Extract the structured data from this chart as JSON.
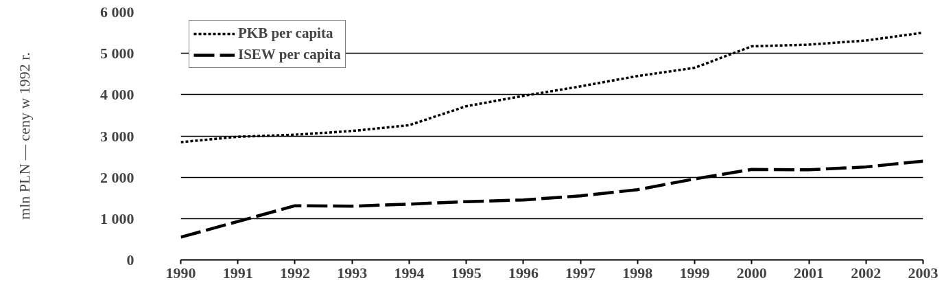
{
  "chart_data": {
    "type": "line",
    "ylabel": "mln PLN — ceny w 1992 r.",
    "x": [
      1990,
      1991,
      1992,
      1993,
      1994,
      1995,
      1996,
      1997,
      1998,
      1999,
      2000,
      2001,
      2002,
      2003
    ],
    "xlim": [
      1990,
      2003
    ],
    "xticks": [
      1990,
      1991,
      1992,
      1993,
      1994,
      1995,
      1996,
      1997,
      1998,
      1999,
      2000,
      2001,
      2002,
      2003
    ],
    "ylim": [
      0,
      6000
    ],
    "yticks": [
      0,
      {
        "value": 1000,
        "label": "1 000"
      },
      {
        "value": 2000,
        "label": "2 000"
      },
      {
        "value": 3000,
        "label": "3 000"
      },
      {
        "value": 4000,
        "label": "4 000"
      },
      {
        "value": 5000,
        "label": "5 000"
      },
      {
        "value": 6000,
        "label": "6 000"
      }
    ],
    "grid": "y",
    "legend": "top left",
    "series": [
      {
        "name": "PKB per capita",
        "color": "#000000",
        "line_style": "dotted",
        "values": [
          2850,
          2980,
          3030,
          3120,
          3260,
          3720,
          3970,
          4200,
          4450,
          4650,
          5170,
          5210,
          5310,
          5500
        ]
      },
      {
        "name": "ISEW per capita",
        "color": "#000000",
        "line_style": "dashed",
        "values": [
          550,
          930,
          1310,
          1300,
          1350,
          1410,
          1450,
          1550,
          1700,
          1960,
          2190,
          2180,
          2250,
          2390
        ]
      }
    ]
  }
}
